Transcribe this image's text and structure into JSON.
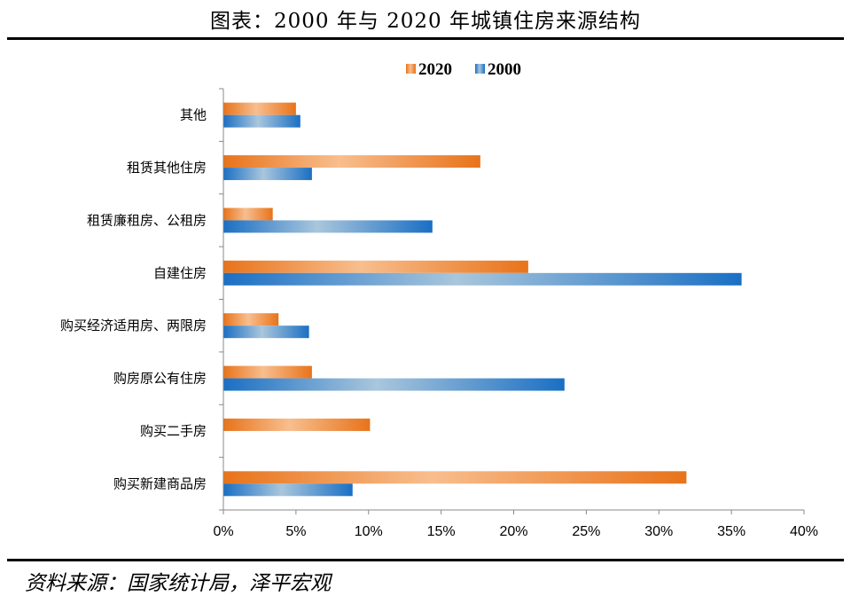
{
  "header": {
    "title": "图表：2000 年与 2020 年城镇住房来源结构"
  },
  "footer": {
    "source": "资料来源：国家统计局，泽平宏观"
  },
  "chart_data": {
    "type": "bar",
    "orientation": "horizontal",
    "categories": [
      "其他",
      "租赁其他住房",
      "租赁廉租房、公租房",
      "自建住房",
      "购买经济适用房、两限房",
      "购房原公有住房",
      "购买二手房",
      "购买新建商品房"
    ],
    "series": [
      {
        "name": "2020",
        "values": [
          5.0,
          17.7,
          3.4,
          21.0,
          3.8,
          6.1,
          10.1,
          31.9
        ],
        "color": "#E8731A"
      },
      {
        "name": "2000",
        "values": [
          5.3,
          6.1,
          14.4,
          35.7,
          5.9,
          23.5,
          0,
          8.9
        ],
        "color": "#1A6FC4"
      }
    ],
    "xlim": [
      0,
      40
    ],
    "xticks": [
      "0%",
      "5%",
      "10%",
      "15%",
      "20%",
      "25%",
      "30%",
      "35%",
      "40%"
    ],
    "legend_position": "top-center",
    "grid": false
  }
}
